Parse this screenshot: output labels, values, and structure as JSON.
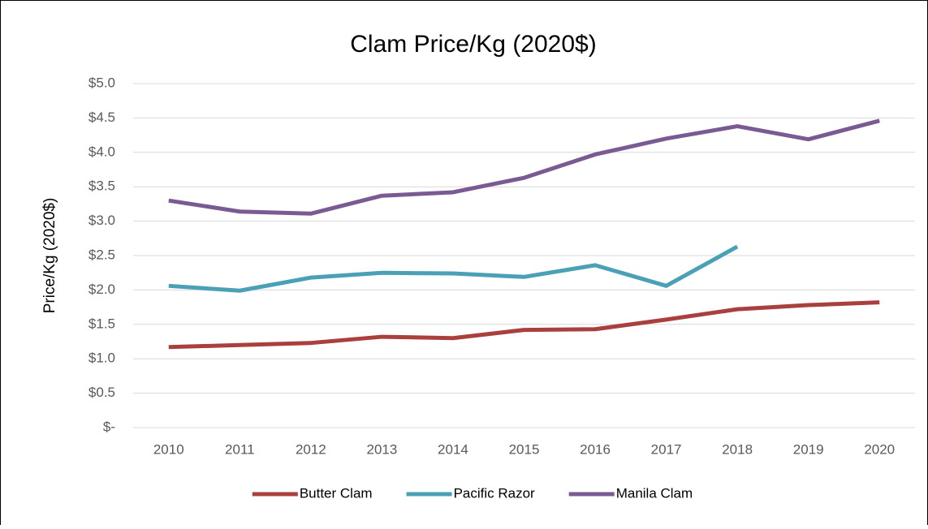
{
  "chart_data": {
    "type": "line",
    "title": "Clam Price/Kg (2020$)",
    "y_label": "Price/Kg (2020$)",
    "categories": [
      "2010",
      "2011",
      "2012",
      "2013",
      "2014",
      "2015",
      "2016",
      "2017",
      "2018",
      "2019",
      "2020"
    ],
    "series": [
      {
        "name": "Butter Clam",
        "color": "#a9403d",
        "values": [
          1.17,
          1.2,
          1.23,
          1.32,
          1.3,
          1.42,
          1.43,
          1.57,
          1.72,
          1.78,
          1.82
        ]
      },
      {
        "name": "Pacific Razor",
        "color": "#4aa0b5",
        "values": [
          2.06,
          1.99,
          2.18,
          2.25,
          2.24,
          2.19,
          2.36,
          2.06,
          2.63,
          null,
          null
        ]
      },
      {
        "name": "Manila Clam",
        "color": "#7a5a93",
        "values": [
          3.3,
          3.14,
          3.11,
          3.37,
          3.42,
          3.63,
          3.97,
          4.2,
          4.38,
          4.19,
          4.46
        ]
      }
    ],
    "ylim": [
      0,
      5
    ],
    "yticks": [
      {
        "value": 0,
        "label": "$-"
      },
      {
        "value": 0.5,
        "label": "$0.5"
      },
      {
        "value": 1,
        "label": "$1.0"
      },
      {
        "value": 1.5,
        "label": "$1.5"
      },
      {
        "value": 2,
        "label": "$2.0"
      },
      {
        "value": 2.5,
        "label": "$2.5"
      },
      {
        "value": 3,
        "label": "$3.0"
      },
      {
        "value": 3.5,
        "label": "$3.5"
      },
      {
        "value": 4,
        "label": "$4.0"
      },
      {
        "value": 4.5,
        "label": "$4.5"
      },
      {
        "value": 5,
        "label": "$5.0"
      }
    ],
    "grid": true,
    "legend": "bottom"
  }
}
